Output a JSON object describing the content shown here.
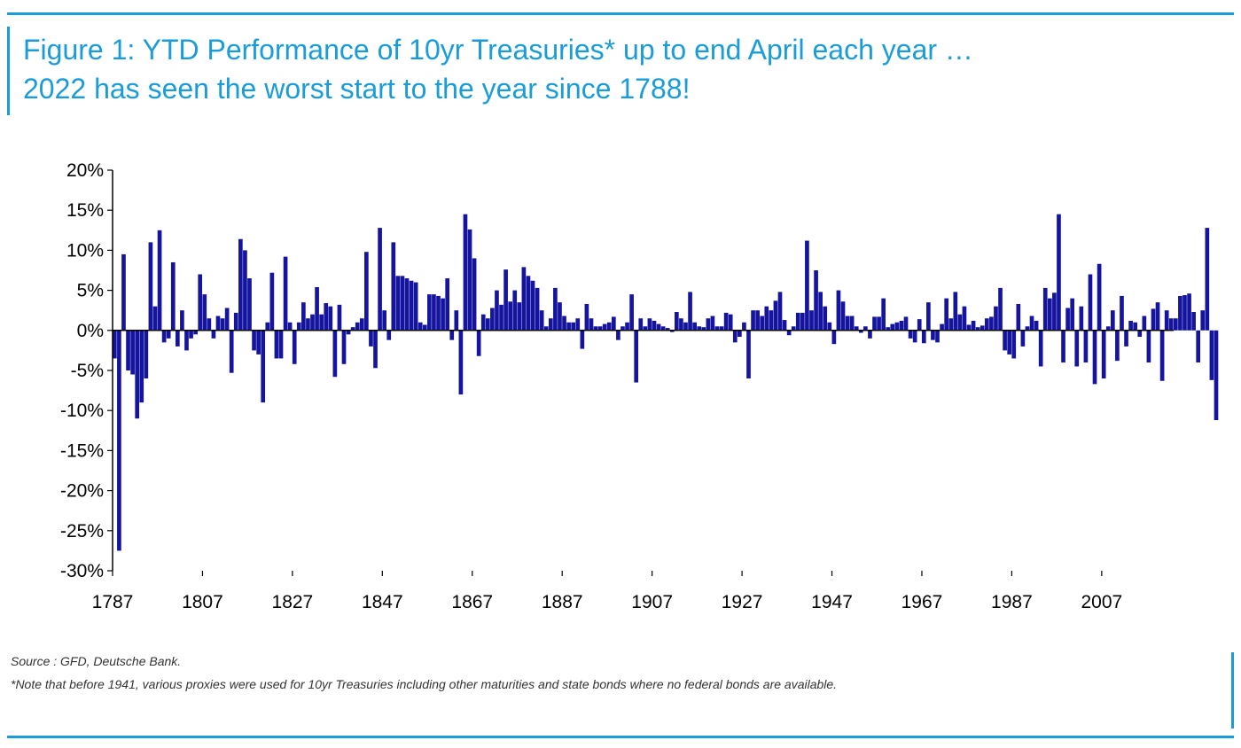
{
  "title": {
    "line1": "Figure 1: YTD Performance of 10yr Treasuries* up to end April each year …",
    "line2": "2022 has seen the worst start to the year since 1788!"
  },
  "footer": {
    "source": "Source : GFD, Deutsche Bank.",
    "note": "*Note that before 1941, various proxies were used for 10yr Treasuries including other maturities and state bonds where no federal bonds are available."
  },
  "colors": {
    "accent": "#1a9cd8",
    "bar": "#14149e",
    "axis": "#000000"
  },
  "chart_data": {
    "type": "bar",
    "title": "Figure 1: YTD Performance of 10yr Treasuries* up to end April each year …",
    "xlabel": "",
    "ylabel": "",
    "ylim": [
      -30,
      20
    ],
    "yticks": [
      20,
      15,
      10,
      5,
      0,
      -5,
      -10,
      -15,
      -20,
      -25,
      -30
    ],
    "ytick_labels": [
      "20%",
      "15%",
      "10%",
      "5%",
      "0%",
      "-5%",
      "-10%",
      "-15%",
      "-20%",
      "-25%",
      "-30%"
    ],
    "xlim": [
      1787,
      2022
    ],
    "xticks": [
      1787,
      1807,
      1827,
      1847,
      1867,
      1887,
      1907,
      1927,
      1947,
      1967,
      1987,
      2007
    ],
    "grid": false,
    "series": [
      {
        "name": "YTD Performance of 10yr Treasuries",
        "start_year": 1787,
        "values": [
          -3.5,
          -27.5,
          9.5,
          -5,
          -5.5,
          -11,
          -9,
          -6,
          11,
          3,
          12.5,
          -1.5,
          -1,
          8.5,
          -2,
          2.5,
          -2.5,
          -1,
          -0.5,
          7,
          4.5,
          1.5,
          -1,
          1.8,
          1.5,
          2.8,
          -5.3,
          2.2,
          11.4,
          10,
          6.5,
          -2.5,
          -3,
          -9,
          1,
          7.2,
          -3.5,
          -3.5,
          9.2,
          1,
          -4.2,
          1,
          3.5,
          1.5,
          2,
          5.4,
          2,
          3.4,
          3,
          -5.8,
          3.2,
          -4.2,
          -0.5,
          0.4,
          1,
          1.5,
          9.8,
          -2,
          -4.7,
          12.8,
          2.5,
          -1.2,
          11,
          6.8,
          6.8,
          6.5,
          6.2,
          6,
          1,
          0.7,
          4.5,
          4.5,
          4.3,
          4,
          6.5,
          -1.2,
          2.5,
          -8,
          14.5,
          12.6,
          9,
          -3.2,
          2,
          1.5,
          2.8,
          5,
          3.2,
          7.6,
          3.6,
          5,
          3.5,
          7.9,
          6.8,
          6.2,
          5.3,
          2.5,
          0.5,
          1.5,
          5.3,
          3.5,
          1.8,
          1,
          1,
          1.5,
          -2.3,
          3.3,
          1.5,
          0.5,
          0.5,
          0.8,
          1,
          1.7,
          -1.2,
          0.5,
          1,
          4.5,
          -6.5,
          1.5,
          0.5,
          1.5,
          1.2,
          0.8,
          0.5,
          0.3,
          -0.2,
          2.3,
          1.5,
          1,
          4.8,
          1,
          0.5,
          0.4,
          1.5,
          1.8,
          0.5,
          0.5,
          2.2,
          2,
          -1.5,
          -0.8,
          1,
          -6,
          2.5,
          2.5,
          1.8,
          3,
          2.5,
          3.7,
          4.8,
          1.3,
          -0.6,
          0.5,
          2.2,
          2.2,
          11.2,
          2.5,
          7.5,
          4.8,
          3,
          1,
          -1.7,
          5,
          3.6,
          1.8,
          1.8,
          0.5,
          -0.3,
          0.5,
          -1,
          1.7,
          1.7,
          4,
          0.4,
          0.8,
          1,
          1.2,
          1.7,
          -1,
          -1.5,
          1.4,
          -1.6,
          3.5,
          -1.2,
          -1.5,
          0.8,
          4,
          1.5,
          4.8,
          2,
          3,
          0.7,
          1.2,
          0.4,
          0.6,
          1.5,
          1.7,
          3,
          5.3,
          -2.5,
          -3,
          -3.5,
          3.3,
          -2,
          0.5,
          1.8,
          1.2,
          -4.5,
          5.3,
          4,
          4.7,
          14.5,
          -4,
          2.8,
          4,
          -4.5,
          3,
          -4,
          7,
          -6.7,
          8.3,
          -6,
          0.5,
          2.5,
          -3.8,
          4.3,
          -2,
          1.2,
          1,
          -0.8,
          1.8,
          -4,
          2.7,
          3.5,
          -6.3,
          2.5,
          1.5,
          1.5,
          4.3,
          4.4,
          4.6,
          2.3,
          -4,
          2.5,
          12.8,
          -6.2,
          -11.2
        ]
      }
    ]
  }
}
